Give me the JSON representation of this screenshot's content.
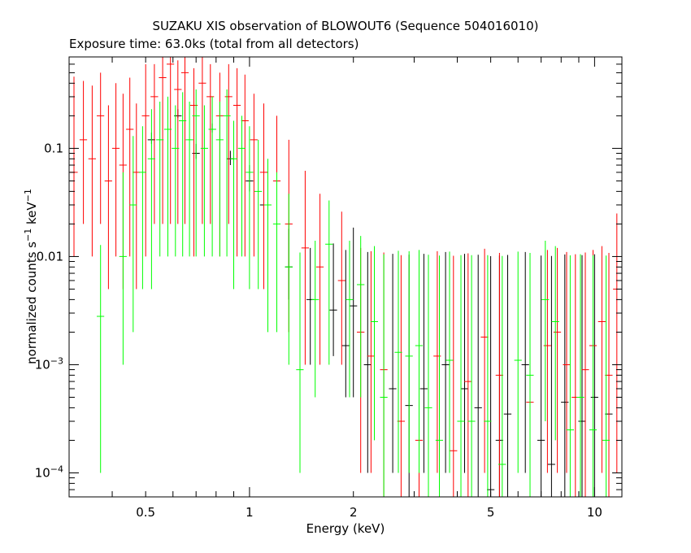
{
  "chart_data": {
    "type": "scatter",
    "title": "SUZAKU XIS observation of BLOWOUT6 (Sequence 504016010)",
    "subtitle": "Exposure time: 63.0ks (total from all detectors)",
    "xlabel": "Energy (keV)",
    "ylabel": {
      "base": "normalized counts s",
      "exp1": "−1",
      "mid": " keV",
      "exp2": "−1"
    },
    "x_scale": "log",
    "y_scale": "log",
    "xlim": [
      0.3,
      12
    ],
    "ylim": [
      6e-05,
      0.7
    ],
    "x_ticks": [
      {
        "value": 0.5,
        "label": "0.5"
      },
      {
        "value": 1,
        "label": "1"
      },
      {
        "value": 2,
        "label": "2"
      },
      {
        "value": 5,
        "label": "5"
      },
      {
        "value": 10,
        "label": "10"
      }
    ],
    "y_ticks": [
      {
        "value": 0.1,
        "label": "0.1",
        "mant": "",
        "exp": ""
      },
      {
        "value": 0.01,
        "label": "0.01",
        "mant": "",
        "exp": ""
      },
      {
        "value": 0.001,
        "label": "",
        "mant": "10",
        "exp": "−3"
      },
      {
        "value": 0.0001,
        "label": "",
        "mant": "10",
        "exp": "−4"
      }
    ],
    "series": [
      {
        "color": "#000000",
        "points": [
          [
            0.52,
            0.12,
            0.02,
            0.01
          ],
          [
            0.62,
            0.2,
            0.03,
            0.01
          ],
          [
            0.7,
            0.09,
            0.02,
            0.01
          ],
          [
            0.78,
            0.15,
            0.02,
            0.01
          ],
          [
            0.88,
            0.08,
            0.015,
            0.01
          ],
          [
            1.0,
            0.05,
            0.02,
            0.01
          ],
          [
            1.1,
            0.03,
            0.015,
            0.01
          ],
          [
            1.3,
            0.008,
            0.01,
            0.004
          ],
          [
            1.5,
            0.004,
            0.008,
            0.003
          ],
          [
            1.75,
            0.0032,
            0.01,
            0.002
          ],
          [
            1.9,
            0.0015,
            0.01,
            0.001
          ],
          [
            2.0,
            0.0035,
            0.015,
            0.003
          ],
          [
            2.2,
            0.001,
            0.01,
            0.0009
          ],
          [
            2.6,
            0.0006,
            0.01,
            0.0005
          ],
          [
            2.9,
            0.00042,
            0.01,
            0.0004
          ],
          [
            3.2,
            0.0006,
            0.01,
            0.0005
          ],
          [
            3.7,
            0.001,
            0.01,
            0.0009
          ],
          [
            4.2,
            0.0006,
            0.01,
            0.0005
          ],
          [
            4.6,
            0.0004,
            0.01,
            0.0004
          ],
          [
            5.0,
            7e-05,
            0.01,
            6e-05
          ],
          [
            5.3,
            0.0002,
            0.01,
            0.00019
          ],
          [
            5.6,
            0.00035,
            0.01,
            0.0003
          ],
          [
            6.3,
            0.001,
            0.01,
            0.0009
          ],
          [
            7.0,
            0.0002,
            0.01,
            0.00019
          ],
          [
            7.5,
            0.00012,
            0.01,
            0.00011
          ],
          [
            8.2,
            0.00045,
            0.01,
            0.0004
          ],
          [
            9.2,
            0.0003,
            0.01,
            0.00028
          ],
          [
            10.0,
            0.0005,
            0.01,
            0.00045
          ],
          [
            11.0,
            0.00035,
            0.01,
            0.0003
          ]
        ]
      },
      {
        "color": "#ff0000",
        "points": [
          [
            0.31,
            0.06,
            0.4,
            0.05
          ],
          [
            0.33,
            0.12,
            0.3,
            0.1
          ],
          [
            0.35,
            0.08,
            0.3,
            0.07
          ],
          [
            0.37,
            0.2,
            0.3,
            0.18
          ],
          [
            0.39,
            0.05,
            0.2,
            0.045
          ],
          [
            0.41,
            0.1,
            0.3,
            0.09
          ],
          [
            0.43,
            0.07,
            0.25,
            0.065
          ],
          [
            0.45,
            0.15,
            0.3,
            0.14
          ],
          [
            0.47,
            0.06,
            0.2,
            0.055
          ],
          [
            0.5,
            0.2,
            0.4,
            0.19
          ],
          [
            0.53,
            0.3,
            0.3,
            0.28
          ],
          [
            0.56,
            0.45,
            0.3,
            0.43
          ],
          [
            0.59,
            0.6,
            0.3,
            0.58
          ],
          [
            0.62,
            0.35,
            0.3,
            0.33
          ],
          [
            0.65,
            0.5,
            0.3,
            0.48
          ],
          [
            0.69,
            0.25,
            0.3,
            0.24
          ],
          [
            0.73,
            0.4,
            0.3,
            0.38
          ],
          [
            0.77,
            0.3,
            0.3,
            0.28
          ],
          [
            0.82,
            0.2,
            0.3,
            0.19
          ],
          [
            0.87,
            0.3,
            0.3,
            0.28
          ],
          [
            0.92,
            0.25,
            0.3,
            0.24
          ],
          [
            0.97,
            0.18,
            0.3,
            0.17
          ],
          [
            1.03,
            0.12,
            0.2,
            0.11
          ],
          [
            1.1,
            0.06,
            0.2,
            0.055
          ],
          [
            1.2,
            0.05,
            0.15,
            0.045
          ],
          [
            1.3,
            0.02,
            0.1,
            0.018
          ],
          [
            1.45,
            0.012,
            0.05,
            0.011
          ],
          [
            1.6,
            0.008,
            0.03,
            0.007
          ],
          [
            1.85,
            0.006,
            0.02,
            0.005
          ],
          [
            2.1,
            0.002,
            0.01,
            0.0019
          ],
          [
            2.25,
            0.0012,
            0.01,
            0.0011
          ],
          [
            2.45,
            0.0009,
            0.01,
            0.00085
          ],
          [
            2.75,
            0.0003,
            0.01,
            0.00028
          ],
          [
            3.1,
            0.0002,
            0.01,
            0.00019
          ],
          [
            3.5,
            0.0012,
            0.01,
            0.0011
          ],
          [
            3.9,
            0.00016,
            0.01,
            0.00015
          ],
          [
            4.3,
            0.0007,
            0.01,
            0.00065
          ],
          [
            4.8,
            0.0018,
            0.01,
            0.0017
          ],
          [
            5.3,
            0.0008,
            0.01,
            0.00075
          ],
          [
            6.5,
            0.00045,
            0.01,
            0.0004
          ],
          [
            7.3,
            0.0015,
            0.01,
            0.0014
          ],
          [
            7.8,
            0.002,
            0.01,
            0.0019
          ],
          [
            8.3,
            0.001,
            0.01,
            0.0009
          ],
          [
            8.8,
            0.0005,
            0.01,
            0.00045
          ],
          [
            9.4,
            0.0009,
            0.01,
            0.00085
          ],
          [
            9.9,
            0.0015,
            0.01,
            0.0014
          ],
          [
            10.5,
            0.0025,
            0.01,
            0.0024
          ],
          [
            11.0,
            0.0008,
            0.01,
            0.00075
          ],
          [
            11.6,
            0.005,
            0.02,
            0.0049
          ]
        ]
      },
      {
        "color": "#00ff00",
        "points": [
          [
            0.37,
            0.0028,
            0.01,
            0.0027
          ],
          [
            0.43,
            0.01,
            0.05,
            0.009
          ],
          [
            0.46,
            0.03,
            0.1,
            0.028
          ],
          [
            0.49,
            0.06,
            0.1,
            0.055
          ],
          [
            0.52,
            0.08,
            0.15,
            0.075
          ],
          [
            0.55,
            0.12,
            0.15,
            0.11
          ],
          [
            0.58,
            0.15,
            0.15,
            0.14
          ],
          [
            0.61,
            0.1,
            0.15,
            0.09
          ],
          [
            0.64,
            0.18,
            0.15,
            0.17
          ],
          [
            0.67,
            0.12,
            0.15,
            0.11
          ],
          [
            0.7,
            0.2,
            0.15,
            0.19
          ],
          [
            0.74,
            0.1,
            0.15,
            0.09
          ],
          [
            0.78,
            0.15,
            0.15,
            0.14
          ],
          [
            0.82,
            0.12,
            0.15,
            0.11
          ],
          [
            0.86,
            0.2,
            0.15,
            0.19
          ],
          [
            0.9,
            0.08,
            0.1,
            0.075
          ],
          [
            0.95,
            0.1,
            0.1,
            0.09
          ],
          [
            1.0,
            0.06,
            0.1,
            0.055
          ],
          [
            1.06,
            0.04,
            0.08,
            0.035
          ],
          [
            1.13,
            0.03,
            0.05,
            0.028
          ],
          [
            1.2,
            0.02,
            0.04,
            0.018
          ],
          [
            1.3,
            0.008,
            0.03,
            0.007
          ],
          [
            1.4,
            0.0009,
            0.01,
            0.0008
          ],
          [
            1.55,
            0.004,
            0.01,
            0.0035
          ],
          [
            1.7,
            0.013,
            0.02,
            0.012
          ],
          [
            1.95,
            0.004,
            0.01,
            0.0035
          ],
          [
            2.1,
            0.0055,
            0.01,
            0.005
          ],
          [
            2.3,
            0.0025,
            0.01,
            0.0023
          ],
          [
            2.45,
            0.0005,
            0.01,
            0.00045
          ],
          [
            2.7,
            0.0013,
            0.01,
            0.0012
          ],
          [
            2.9,
            0.0012,
            0.01,
            0.0011
          ],
          [
            3.1,
            0.0015,
            0.01,
            0.0014
          ],
          [
            3.3,
            0.0004,
            0.01,
            0.00037
          ],
          [
            3.55,
            0.0002,
            0.01,
            0.00019
          ],
          [
            3.8,
            0.0011,
            0.01,
            0.001
          ],
          [
            4.1,
            0.0003,
            0.01,
            0.00028
          ],
          [
            4.4,
            0.0003,
            0.01,
            0.00028
          ],
          [
            4.9,
            0.0003,
            0.01,
            0.00028
          ],
          [
            5.4,
            0.00012,
            0.01,
            0.00011
          ],
          [
            6.0,
            0.0011,
            0.01,
            0.001
          ],
          [
            6.5,
            0.0008,
            0.01,
            0.00075
          ],
          [
            7.2,
            0.004,
            0.01,
            0.0037
          ],
          [
            7.7,
            0.0025,
            0.01,
            0.0023
          ],
          [
            8.5,
            0.00025,
            0.01,
            0.00024
          ],
          [
            9.1,
            0.0005,
            0.01,
            0.00045
          ],
          [
            9.9,
            0.00025,
            0.01,
            0.00024
          ],
          [
            10.8,
            0.0002,
            0.01,
            0.00019
          ]
        ]
      }
    ]
  }
}
